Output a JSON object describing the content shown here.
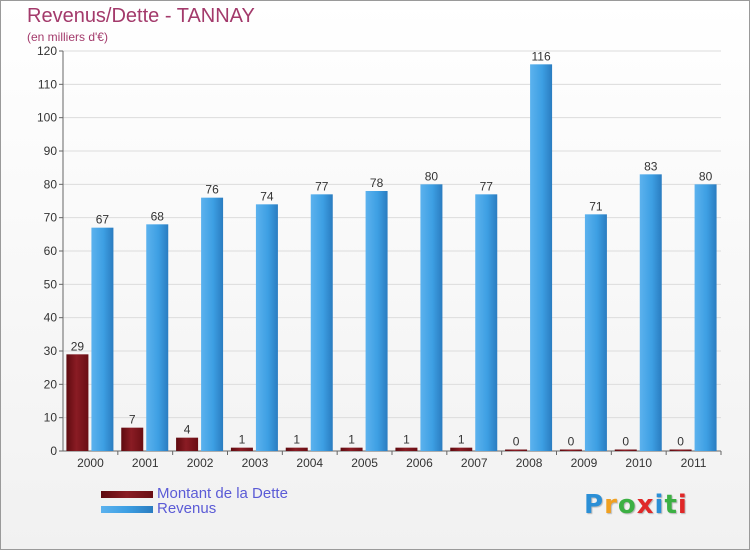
{
  "title": "Revenus/Dette - TANNAY",
  "subtitle": "(en milliers d'€)",
  "logo": {
    "letters": [
      "P",
      "r",
      "o",
      "x",
      "i",
      "t",
      "i"
    ],
    "colors": [
      "#2b8fd6",
      "#f0a020",
      "#3cb043",
      "#e02828",
      "#2b8fd6",
      "#3cb043",
      "#e02828"
    ]
  },
  "chart_data": {
    "type": "bar",
    "categories": [
      "2000",
      "2001",
      "2002",
      "2003",
      "2004",
      "2005",
      "2006",
      "2007",
      "2008",
      "2009",
      "2010",
      "2011"
    ],
    "series": [
      {
        "name": "Montant de la Dette",
        "color": "#7a1218",
        "values": [
          29,
          7,
          4,
          1,
          1,
          1,
          1,
          1,
          0,
          0,
          0,
          0
        ],
        "labels": [
          "29",
          "7",
          "4",
          "1",
          "1",
          "1",
          "1",
          "1",
          "0",
          "0",
          "0",
          "0"
        ]
      },
      {
        "name": "Revenus",
        "color": "#3d9fe3",
        "values": [
          67,
          68,
          76,
          74,
          77,
          78,
          80,
          77,
          116,
          71,
          83,
          80
        ],
        "labels": [
          "67",
          "68",
          "76",
          "74",
          "77",
          "78",
          "80",
          "77",
          "116",
          "71",
          "83",
          "80"
        ]
      }
    ],
    "ylim": [
      0,
      120
    ],
    "yticks": [
      "0",
      "10",
      "20",
      "30",
      "40",
      "50",
      "60",
      "70",
      "80",
      "90",
      "100",
      "110",
      "120"
    ],
    "grid": true,
    "legend_position": "bottom-left"
  }
}
